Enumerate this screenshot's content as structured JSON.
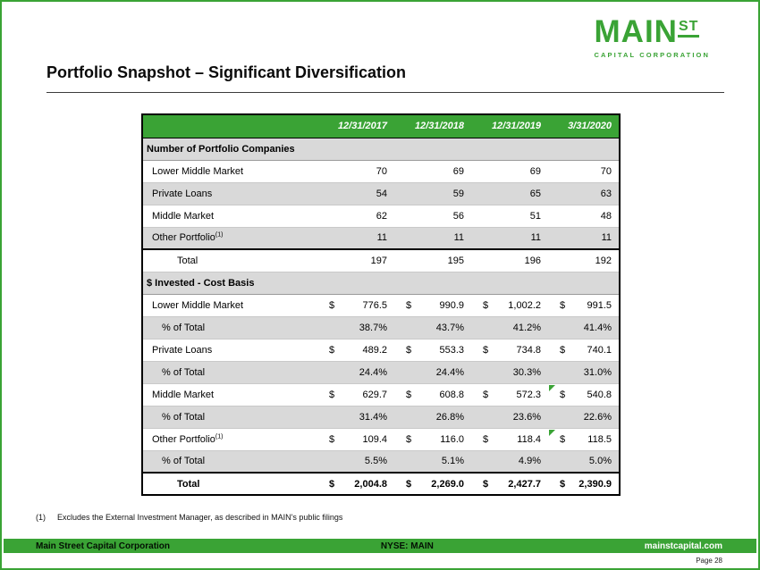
{
  "colors": {
    "green": "#3aa335",
    "shade": "#d9d9d9"
  },
  "logo": {
    "main": "MAIN",
    "st": "ST",
    "subtitle": "CAPITAL CORPORATION"
  },
  "title": "Portfolio Snapshot – Significant Diversification",
  "table": {
    "col_headers": [
      "12/31/2017",
      "12/31/2018",
      "12/31/2019",
      "3/31/2020"
    ],
    "rows": [
      {
        "section": "Number of Portfolio Companies"
      },
      {
        "label": "Lower Middle Market",
        "indent": 1,
        "values": [
          "70",
          "69",
          "69",
          "70"
        ]
      },
      {
        "label": "Private Loans",
        "indent": 1,
        "shade": true,
        "values": [
          "54",
          "59",
          "65",
          "63"
        ]
      },
      {
        "label": "Middle Market",
        "indent": 1,
        "values": [
          "62",
          "56",
          "51",
          "48"
        ]
      },
      {
        "label": "Other Portfolio",
        "sup": "(1)",
        "indent": 1,
        "shade": true,
        "values": [
          "11",
          "11",
          "11",
          "11"
        ]
      },
      {
        "label": "Total",
        "indent": 3,
        "topborder": true,
        "values": [
          "197",
          "195",
          "196",
          "192"
        ]
      },
      {
        "section": "$ Invested - Cost Basis"
      },
      {
        "label": "Lower Middle Market",
        "indent": 1,
        "dollar": true,
        "values": [
          "776.5",
          "990.9",
          "1,002.2",
          "991.5"
        ]
      },
      {
        "label": "% of Total",
        "indent": 2,
        "shade": true,
        "values": [
          "38.7%",
          "43.7%",
          "41.2%",
          "41.4%"
        ]
      },
      {
        "label": "Private Loans",
        "indent": 1,
        "dollar": true,
        "values": [
          "489.2",
          "553.3",
          "734.8",
          "740.1"
        ]
      },
      {
        "label": "% of Total",
        "indent": 2,
        "shade": true,
        "values": [
          "24.4%",
          "24.4%",
          "30.3%",
          "31.0%"
        ]
      },
      {
        "label": "Middle Market",
        "indent": 1,
        "dollar": true,
        "flags": [
          false,
          false,
          false,
          true
        ],
        "values": [
          "629.7",
          "608.8",
          "572.3",
          "540.8"
        ]
      },
      {
        "label": "% of Total",
        "indent": 2,
        "shade": true,
        "values": [
          "31.4%",
          "26.8%",
          "23.6%",
          "22.6%"
        ]
      },
      {
        "label": "Other Portfolio",
        "sup": "(1)",
        "indent": 1,
        "dollar": true,
        "flags": [
          false,
          false,
          false,
          true
        ],
        "values": [
          "109.4",
          "116.0",
          "118.4",
          "118.5"
        ]
      },
      {
        "label": "% of Total",
        "indent": 2,
        "shade": true,
        "values": [
          "5.5%",
          "5.1%",
          "4.9%",
          "5.0%"
        ]
      },
      {
        "label": "Total",
        "indent": 3,
        "bold": true,
        "topborder": true,
        "dollar": true,
        "values": [
          "2,004.8",
          "2,269.0",
          "2,427.7",
          "2,390.9"
        ]
      }
    ]
  },
  "footnote": {
    "marker": "(1)",
    "text": "Excludes the External Investment Manager, as described in MAIN's public filings"
  },
  "footer": {
    "left": "Main Street Capital Corporation",
    "center": "NYSE:  MAIN",
    "right": "mainstcapital.com",
    "page": "Page  28"
  }
}
